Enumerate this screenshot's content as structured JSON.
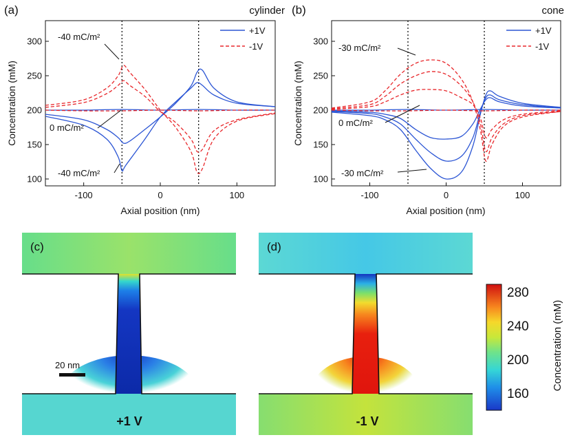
{
  "chart_data": [
    {
      "panel": "(a)",
      "type": "line",
      "title": "cylinder",
      "xlabel": "Axial position (nm)",
      "ylabel": "Concentration (mM)",
      "xlim": [
        -150,
        150
      ],
      "ylim": [
        90,
        330
      ],
      "xticks": [
        "-100",
        "0",
        "100"
      ],
      "yticks": [
        "100",
        "150",
        "200",
        "250",
        "300"
      ],
      "legend": [
        "+1V",
        "-1V"
      ],
      "legend_position": "top-right",
      "vlines": [
        -50,
        50
      ],
      "annotations": [
        "-40 mC/m²",
        "0 mC/m²",
        "-40 mC/m²"
      ],
      "series": [
        {
          "name": "+1V",
          "style": "solid",
          "x": [
            -150,
            -100,
            -70,
            -55,
            -48,
            -40,
            -20,
            0,
            20,
            40,
            48,
            55,
            70,
            100,
            150
          ],
          "y": [
            194,
            186,
            172,
            160,
            152,
            155,
            172,
            190,
            210,
            235,
            255,
            258,
            232,
            212,
            205
          ]
        },
        {
          "name": "+1V",
          "style": "solid",
          "x": [
            -150,
            -100,
            -70,
            -55,
            -50,
            -45,
            -20,
            0,
            20,
            40,
            48,
            55,
            70,
            100,
            150
          ],
          "y": [
            191,
            178,
            158,
            132,
            112,
            120,
            158,
            190,
            212,
            232,
            240,
            236,
            222,
            210,
            205
          ]
        },
        {
          "name": "+1V",
          "style": "solid",
          "x": [
            -150,
            -100,
            -50,
            0,
            50,
            100,
            150
          ],
          "y": [
            200,
            200,
            201,
            200,
            201,
            200,
            200
          ]
        },
        {
          "name": "-1V",
          "style": "dashed",
          "x": [
            -150,
            -100,
            -70,
            -55,
            -48,
            -40,
            -20,
            0,
            20,
            40,
            48,
            55,
            70,
            100,
            150
          ],
          "y": [
            207,
            215,
            232,
            250,
            265,
            255,
            230,
            200,
            175,
            140,
            110,
            115,
            158,
            184,
            195
          ]
        },
        {
          "name": "-1V",
          "style": "dashed",
          "x": [
            -150,
            -100,
            -70,
            -55,
            -48,
            -40,
            -20,
            0,
            20,
            40,
            48,
            55,
            70,
            100,
            150
          ],
          "y": [
            204,
            211,
            224,
            236,
            243,
            236,
            220,
            198,
            182,
            158,
            140,
            143,
            170,
            186,
            196
          ]
        },
        {
          "name": "-1V",
          "style": "dashed",
          "x": [
            -150,
            -100,
            -50,
            0,
            50,
            100,
            150
          ],
          "y": [
            200,
            199,
            199,
            200,
            199,
            200,
            200
          ]
        }
      ]
    },
    {
      "panel": "(b)",
      "type": "line",
      "title": "cone",
      "xlabel": "Axial position (nm)",
      "ylabel": "Concentration (mM)",
      "xlim": [
        -150,
        150
      ],
      "ylim": [
        90,
        330
      ],
      "xticks": [
        "-100",
        "0",
        "100"
      ],
      "yticks": [
        "100",
        "150",
        "200",
        "250",
        "300"
      ],
      "legend": [
        "+1V",
        "-1V"
      ],
      "legend_position": "top-right",
      "vlines": [
        -50,
        50
      ],
      "annotations": [
        "-30 mC/m²",
        "0 mC/m²",
        "-30 mC/m²"
      ],
      "series": [
        {
          "name": "+1V",
          "style": "solid",
          "x": [
            -150,
            -100,
            -80,
            -60,
            -40,
            -20,
            0,
            20,
            35,
            45,
            52,
            58,
            70,
            100,
            150
          ],
          "y": [
            197,
            192,
            186,
            172,
            142,
            115,
            100,
            110,
            148,
            195,
            222,
            228,
            220,
            210,
            204
          ]
        },
        {
          "name": "+1V",
          "style": "solid",
          "x": [
            -150,
            -100,
            -80,
            -60,
            -40,
            -20,
            0,
            20,
            35,
            45,
            52,
            58,
            70,
            100,
            150
          ],
          "y": [
            198,
            195,
            190,
            180,
            158,
            138,
            126,
            133,
            160,
            198,
            218,
            222,
            215,
            208,
            203
          ]
        },
        {
          "name": "+1V",
          "style": "solid",
          "x": [
            -150,
            -100,
            -80,
            -60,
            -40,
            -20,
            0,
            20,
            35,
            45,
            52,
            58,
            70,
            100,
            150
          ],
          "y": [
            199,
            197,
            194,
            188,
            172,
            160,
            158,
            162,
            180,
            202,
            215,
            218,
            212,
            206,
            203
          ]
        },
        {
          "name": "+1V",
          "style": "solid",
          "x": [
            -150,
            -100,
            -50,
            0,
            50,
            100,
            150
          ],
          "y": [
            200,
            200,
            201,
            200,
            201,
            200,
            200
          ]
        },
        {
          "name": "-1V",
          "style": "dashed",
          "x": [
            -150,
            -100,
            -80,
            -60,
            -40,
            -20,
            0,
            20,
            35,
            45,
            52,
            60,
            75,
            100,
            150
          ],
          "y": [
            203,
            212,
            228,
            252,
            268,
            273,
            268,
            245,
            212,
            170,
            126,
            150,
            176,
            190,
            198
          ]
        },
        {
          "name": "-1V",
          "style": "dashed",
          "x": [
            -150,
            -100,
            -80,
            -60,
            -40,
            -20,
            0,
            20,
            35,
            45,
            52,
            60,
            75,
            100,
            150
          ],
          "y": [
            202,
            208,
            220,
            238,
            250,
            256,
            252,
            235,
            212,
            180,
            140,
            160,
            180,
            192,
            198
          ]
        },
        {
          "name": "-1V",
          "style": "dashed",
          "x": [
            -150,
            -100,
            -80,
            -60,
            -40,
            -20,
            0,
            20,
            35,
            45,
            52,
            60,
            75,
            100,
            150
          ],
          "y": [
            201,
            205,
            212,
            222,
            229,
            230,
            228,
            218,
            208,
            188,
            160,
            172,
            186,
            194,
            199
          ]
        },
        {
          "name": "-1V",
          "style": "dashed",
          "x": [
            -150,
            -100,
            -50,
            0,
            50,
            100,
            150
          ],
          "y": [
            200,
            199,
            199,
            200,
            199,
            200,
            200
          ]
        }
      ]
    },
    {
      "panel": "(c)",
      "type": "heatmap",
      "label": "+1 V",
      "scale_bar": "20 nm"
    },
    {
      "panel": "(d)",
      "type": "heatmap",
      "label": "-1 V"
    }
  ],
  "colorbar": {
    "label": "Concentration (mM)",
    "ticks": [
      "280",
      "240",
      "200",
      "160"
    ],
    "range": [
      140,
      285
    ]
  },
  "colors": {
    "plus": "#2b55d4",
    "minus": "#e8262a",
    "dark_blue": "#0a2aa8",
    "red": "#e8120e"
  }
}
